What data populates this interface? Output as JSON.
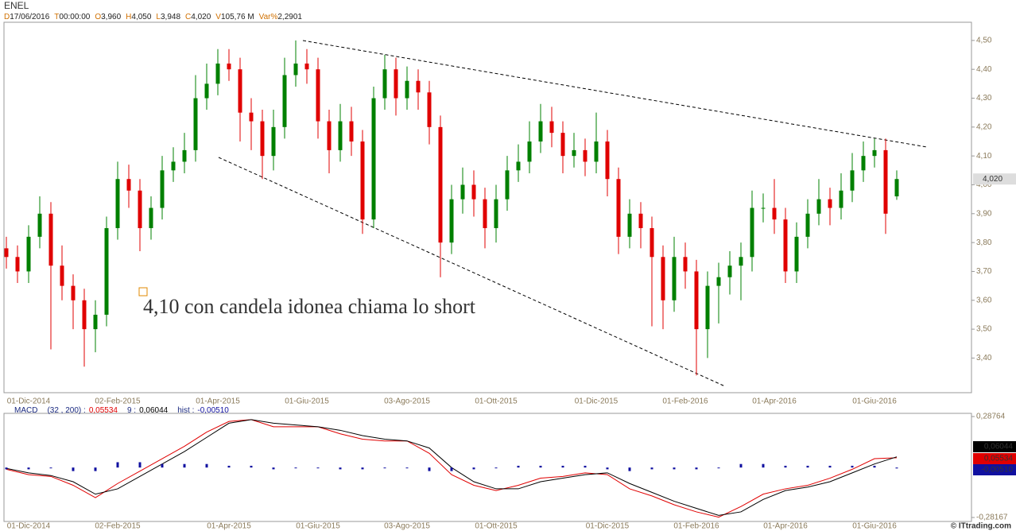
{
  "chart_data": [
    {
      "type": "candlestick",
      "title": "ENEL",
      "header": [
        {
          "key": "D",
          "value": "17/06/2016"
        },
        {
          "key": "T",
          "value": "00:00:00"
        },
        {
          "key": "O",
          "value": "3,960"
        },
        {
          "key": "H",
          "value": "4,050"
        },
        {
          "key": "L",
          "value": "3,948"
        },
        {
          "key": "C",
          "value": "4,020"
        },
        {
          "key": "V",
          "value": "105,76 M"
        },
        {
          "key": "Var%",
          "value": "2,2901"
        }
      ],
      "categories": [
        null,
        null,
        "01-Dic-2014",
        null,
        null,
        null,
        null,
        null,
        null,
        null,
        "02-Feb-2015",
        null,
        null,
        null,
        null,
        null,
        null,
        null,
        null,
        "01-Apr-2015",
        null,
        null,
        null,
        null,
        null,
        null,
        null,
        "01-Giu-2015",
        null,
        null,
        null,
        null,
        null,
        null,
        null,
        null,
        "03-Ago-2015",
        null,
        null,
        null,
        null,
        null,
        null,
        null,
        "01-Ott-2015",
        null,
        null,
        null,
        null,
        null,
        null,
        null,
        null,
        "01-Dic-2015",
        null,
        null,
        null,
        null,
        null,
        null,
        null,
        "01-Feb-2016",
        null,
        null,
        null,
        null,
        null,
        null,
        null,
        "01-Apr-2016",
        null,
        null,
        null,
        null,
        null,
        null,
        null,
        null,
        "01-Giu-2016",
        null,
        null
      ],
      "open": [
        3.78,
        3.75,
        3.7,
        3.82,
        3.9,
        3.72,
        3.65,
        3.6,
        3.5,
        3.55,
        3.85,
        4.02,
        3.98,
        3.85,
        3.92,
        4.05,
        4.08,
        4.12,
        4.3,
        4.35,
        4.42,
        4.4,
        4.25,
        4.22,
        4.1,
        4.2,
        4.38,
        4.42,
        4.4,
        4.22,
        4.12,
        4.22,
        4.15,
        3.88,
        4.3,
        4.4,
        4.3,
        4.36,
        4.32,
        4.2,
        3.8,
        3.95,
        4.0,
        3.95,
        3.85,
        3.95,
        4.05,
        4.08,
        4.15,
        4.22,
        4.18,
        4.1,
        4.12,
        4.08,
        4.15,
        4.02,
        3.82,
        3.9,
        3.85,
        3.75,
        3.6,
        3.75,
        3.7,
        3.5,
        3.65,
        3.68,
        3.72,
        3.75,
        3.92,
        3.92,
        3.88,
        3.7,
        3.82,
        3.9,
        3.95,
        3.92,
        3.98,
        4.05,
        4.1,
        4.12,
        3.96
      ],
      "high": [
        3.82,
        3.79,
        3.86,
        3.96,
        3.94,
        3.79,
        3.69,
        3.64,
        3.6,
        3.89,
        4.08,
        4.07,
        4.02,
        3.96,
        4.1,
        4.13,
        4.18,
        4.38,
        4.42,
        4.47,
        4.47,
        4.44,
        4.3,
        4.26,
        4.26,
        4.44,
        4.5,
        4.47,
        4.44,
        4.26,
        4.28,
        4.27,
        4.19,
        4.34,
        4.45,
        4.44,
        4.41,
        4.4,
        4.36,
        4.24,
        4.0,
        4.06,
        4.05,
        3.99,
        4.0,
        4.1,
        4.14,
        4.22,
        4.28,
        4.27,
        4.22,
        4.18,
        4.16,
        4.25,
        4.19,
        4.06,
        3.95,
        3.94,
        3.89,
        3.79,
        3.82,
        3.8,
        3.74,
        3.7,
        3.73,
        3.77,
        3.8,
        3.98,
        3.97,
        4.02,
        3.92,
        3.87,
        3.95,
        4.02,
        3.99,
        4.04,
        4.11,
        4.15,
        4.16,
        4.16,
        4.05
      ],
      "low": [
        3.71,
        3.66,
        3.66,
        3.78,
        3.43,
        3.6,
        3.5,
        3.37,
        3.42,
        3.51,
        3.81,
        3.92,
        3.77,
        3.81,
        3.88,
        4.01,
        4.04,
        4.08,
        4.26,
        4.31,
        4.36,
        4.15,
        4.12,
        4.02,
        4.05,
        4.16,
        4.34,
        4.35,
        4.16,
        4.04,
        4.08,
        4.1,
        3.83,
        3.85,
        4.26,
        4.24,
        4.26,
        4.26,
        4.14,
        3.68,
        3.76,
        3.9,
        3.89,
        3.78,
        3.8,
        3.91,
        4.01,
        4.04,
        4.11,
        4.13,
        4.04,
        4.06,
        4.03,
        4.04,
        3.96,
        3.76,
        3.78,
        3.78,
        3.51,
        3.5,
        3.56,
        3.64,
        3.34,
        3.4,
        3.52,
        3.62,
        3.6,
        3.7,
        3.87,
        3.83,
        3.66,
        3.66,
        3.78,
        3.86,
        3.86,
        3.88,
        3.94,
        4.01,
        4.06,
        3.83,
        3.948
      ],
      "close": [
        3.75,
        3.7,
        3.82,
        3.9,
        3.72,
        3.65,
        3.6,
        3.5,
        3.55,
        3.85,
        4.02,
        3.98,
        3.85,
        3.92,
        4.05,
        4.08,
        4.12,
        4.3,
        4.35,
        4.42,
        4.4,
        4.25,
        4.22,
        4.1,
        4.2,
        4.38,
        4.42,
        4.4,
        4.22,
        4.12,
        4.22,
        4.15,
        3.88,
        4.3,
        4.4,
        4.3,
        4.36,
        4.32,
        4.2,
        3.8,
        3.95,
        4.0,
        3.95,
        3.85,
        3.95,
        4.05,
        4.08,
        4.15,
        4.22,
        4.18,
        4.1,
        4.12,
        4.08,
        4.15,
        4.02,
        3.82,
        3.9,
        3.85,
        3.75,
        3.6,
        3.75,
        3.7,
        3.5,
        3.65,
        3.68,
        3.72,
        3.75,
        3.92,
        3.92,
        3.88,
        3.7,
        3.82,
        3.9,
        3.95,
        3.92,
        3.98,
        4.05,
        4.1,
        4.12,
        3.9,
        4.02
      ],
      "colors": {
        "up": "#008000",
        "down": "#e00000"
      },
      "ylim": [
        3.28,
        4.563
      ],
      "yticks": [
        {
          "value": 3.4,
          "label": "3,40"
        },
        {
          "value": 3.5,
          "label": "3,50"
        },
        {
          "value": 3.6,
          "label": "3,60"
        },
        {
          "value": 3.7,
          "label": "3,70"
        },
        {
          "value": 3.8,
          "label": "3,80"
        },
        {
          "value": 3.9,
          "label": "3,90"
        },
        {
          "value": 4.0,
          "label": "4,00"
        },
        {
          "value": 4.1,
          "label": "4,10"
        },
        {
          "value": 4.2,
          "label": "4,20"
        },
        {
          "value": 4.3,
          "label": "4,30"
        },
        {
          "value": 4.4,
          "label": "4,40"
        },
        {
          "value": 4.5,
          "label": "4,50"
        }
      ],
      "annotation": "4,10 con candela idonea chiama lo short"
    },
    {
      "type": "line",
      "title": "MACD",
      "params": "(32 , 200) :",
      "categories": [
        null,
        "01-Dic-2014",
        null,
        null,
        null,
        "02-Feb-2015",
        null,
        null,
        null,
        null,
        "01-Apr-2015",
        null,
        null,
        null,
        "01-Giu-2015",
        null,
        null,
        null,
        "03-Ago-2015",
        null,
        null,
        null,
        "01-Ott-2015",
        null,
        null,
        null,
        null,
        "01-Dic-2015",
        null,
        null,
        null,
        "01-Feb-2016",
        null,
        null,
        null,
        "01-Apr-2016",
        null,
        null,
        null,
        "01-Giu-2016",
        null
      ],
      "series": [
        {
          "name": "MACD",
          "color": "#e00000",
          "last_label": "0,05534",
          "values": [
            -0.01,
            -0.04,
            -0.05,
            -0.1,
            -0.17,
            -0.09,
            -0.02,
            0.05,
            0.12,
            0.2,
            0.26,
            0.27,
            0.23,
            0.23,
            0.23,
            0.19,
            0.16,
            0.15,
            0.15,
            0.08,
            -0.04,
            -0.1,
            -0.13,
            -0.1,
            -0.06,
            -0.05,
            -0.03,
            -0.04,
            -0.12,
            -0.16,
            -0.21,
            -0.25,
            -0.28,
            -0.22,
            -0.15,
            -0.12,
            -0.1,
            -0.06,
            -0.01,
            0.05,
            0.05534
          ]
        },
        {
          "name": "9 :",
          "color": "#000000",
          "last_label": "0,06044",
          "values": [
            -0.005,
            -0.03,
            -0.045,
            -0.08,
            -0.15,
            -0.12,
            -0.05,
            0.02,
            0.09,
            0.17,
            0.25,
            0.27,
            0.25,
            0.24,
            0.23,
            0.21,
            0.18,
            0.16,
            0.15,
            0.11,
            0.0,
            -0.08,
            -0.12,
            -0.12,
            -0.08,
            -0.06,
            -0.04,
            -0.03,
            -0.09,
            -0.14,
            -0.19,
            -0.23,
            -0.27,
            -0.25,
            -0.18,
            -0.13,
            -0.11,
            -0.08,
            -0.03,
            0.02,
            0.06044
          ]
        },
        {
          "name": "hist :",
          "color": "#1010a0",
          "last_label": "-0,00510",
          "values": [
            -0.01,
            -0.01,
            0,
            -0.02,
            -0.02,
            0.03,
            0.03,
            0.02,
            0.02,
            0.02,
            0.01,
            0.01,
            -0.01,
            0,
            0,
            -0.01,
            -0.01,
            0,
            0,
            -0.02,
            -0.02,
            -0.01,
            0,
            0.01,
            0.01,
            0.01,
            0.01,
            -0.01,
            -0.02,
            -0.01,
            -0.01,
            -0.01,
            0,
            0.02,
            0.02,
            0.01,
            0.01,
            0.01,
            0.01,
            0.01,
            -0.0051
          ]
        }
      ],
      "ylim": [
        -0.28167,
        0.28764
      ],
      "yticks": [
        {
          "value": -0.28167,
          "label": "-0,28167"
        },
        {
          "value": 0.28764,
          "label": "0,28764"
        }
      ]
    }
  ],
  "footer": "© ITtrading.com"
}
